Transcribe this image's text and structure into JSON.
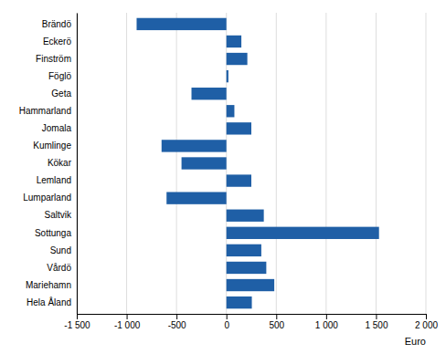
{
  "chart_data": {
    "type": "bar",
    "orientation": "horizontal",
    "categories": [
      "Brändö",
      "Eckerö",
      "Finström",
      "Föglö",
      "Geta",
      "Hammarland",
      "Jomala",
      "Kumlinge",
      "Kökar",
      "Lemland",
      "Lumparland",
      "Saltvik",
      "Sottunga",
      "Sund",
      "Vårdö",
      "Mariehamn",
      "Hela Åland"
    ],
    "values": [
      -900,
      150,
      210,
      20,
      -350,
      80,
      250,
      -650,
      -450,
      250,
      -600,
      375,
      1530,
      350,
      400,
      480,
      255
    ],
    "color": "#1F5FA6",
    "xlabel": "Euro",
    "xlim": [
      -1500,
      2000
    ],
    "xticks": [
      {
        "value": -1500,
        "label": "-1 500"
      },
      {
        "value": -1000,
        "label": "-1 000"
      },
      -500,
      0,
      500,
      {
        "value": 1000,
        "label": "1 000"
      },
      {
        "value": 1500,
        "label": "1 500"
      },
      {
        "value": 2000,
        "label": "2 000"
      }
    ],
    "grid": true
  }
}
